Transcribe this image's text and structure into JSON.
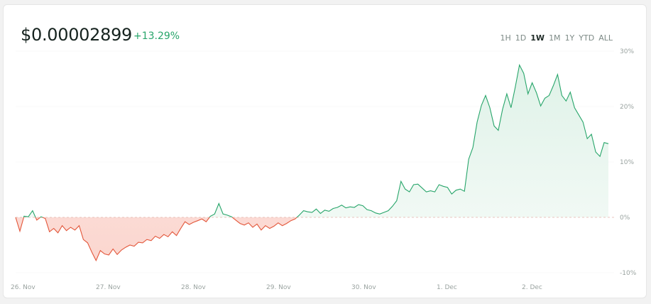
{
  "header": {
    "price": "$0.00002899",
    "change": "+13.29%"
  },
  "ranges": [
    {
      "label": "1H",
      "active": false
    },
    {
      "label": "1D",
      "active": false
    },
    {
      "label": "1W",
      "active": true
    },
    {
      "label": "1M",
      "active": false
    },
    {
      "label": "1Y",
      "active": false
    },
    {
      "label": "YTD",
      "active": false
    },
    {
      "label": "ALL",
      "active": false
    }
  ],
  "colors": {
    "up": "#27a56a",
    "down": "#e3573b",
    "up_fill": "#e9f6ef",
    "down_fill": "#fde4df",
    "baseline": "#e3b3aa"
  },
  "chart_data": {
    "type": "area",
    "x_tick_labels": [
      "26. Nov",
      "27. Nov",
      "28. Nov",
      "29. Nov",
      "30. Nov",
      "1. Dec",
      "2. Dec"
    ],
    "y_tick_labels": [
      "30%",
      "20%",
      "10%",
      "0%",
      "-10%"
    ],
    "y_ticks": [
      30,
      20,
      10,
      0,
      -10
    ],
    "ylim": [
      -10,
      30
    ],
    "baseline": 0,
    "x_range": [
      26.0,
      33.0
    ],
    "series": [
      {
        "x": [
          26.0,
          26.05,
          26.1,
          26.15,
          26.2,
          26.25,
          26.3,
          26.35,
          26.4,
          26.45,
          26.5,
          26.55,
          26.6,
          26.65,
          26.7,
          26.75,
          26.8,
          26.85,
          26.9,
          26.95,
          27.0,
          27.05,
          27.1,
          27.15,
          27.2,
          27.25,
          27.3,
          27.35,
          27.4,
          27.45,
          27.5,
          27.55,
          27.6,
          27.65,
          27.7,
          27.75,
          27.8,
          27.85,
          27.9,
          27.95,
          28.0,
          28.05,
          28.1,
          28.15,
          28.2,
          28.25,
          28.3,
          28.35,
          28.4,
          28.45,
          28.5,
          28.55,
          28.6,
          28.65,
          28.7,
          28.75,
          28.8,
          28.85,
          28.9,
          28.95,
          29.0,
          29.05,
          29.1,
          29.15,
          29.2,
          29.25,
          29.3,
          29.35,
          29.4,
          29.45,
          29.5,
          29.55,
          29.6,
          29.65,
          29.7,
          29.75,
          29.8,
          29.85,
          29.9,
          29.95,
          30.0,
          30.05,
          30.1,
          30.15,
          30.2,
          30.25,
          30.3,
          30.35,
          30.4,
          30.45,
          30.5,
          30.55,
          30.6,
          30.65,
          30.7,
          30.75,
          30.8,
          30.85,
          30.9,
          30.95,
          31.0,
          31.05,
          31.1,
          31.15,
          31.2,
          31.25,
          31.3,
          31.35,
          31.4,
          31.45,
          31.5,
          31.55,
          31.6,
          31.65,
          31.7,
          31.75,
          31.8,
          31.85,
          31.9,
          31.95,
          32.0,
          32.05,
          32.1,
          32.15,
          32.2,
          32.25,
          32.3,
          32.35,
          32.4,
          32.45,
          32.5,
          32.55,
          32.6,
          32.65,
          32.7,
          32.75,
          32.8,
          32.85,
          32.9,
          32.95,
          33.0
        ],
        "y": [
          0.0,
          -2.5,
          0.2,
          0.1,
          1.2,
          -0.5,
          0.1,
          -0.2,
          -2.6,
          -2.0,
          -2.8,
          -1.5,
          -2.4,
          -1.8,
          -2.3,
          -1.5,
          -4.0,
          -4.6,
          -6.3,
          -7.8,
          -6.0,
          -6.6,
          -6.8,
          -5.7,
          -6.7,
          -5.9,
          -5.4,
          -5.0,
          -5.2,
          -4.5,
          -4.6,
          -4.0,
          -4.2,
          -3.4,
          -3.8,
          -3.1,
          -3.5,
          -2.6,
          -3.3,
          -2.0,
          -0.8,
          -1.3,
          -0.9,
          -0.6,
          -0.3,
          -0.8,
          0.2,
          0.6,
          2.5,
          0.6,
          0.4,
          0.1,
          -0.5,
          -1.1,
          -1.4,
          -1.0,
          -1.8,
          -1.2,
          -2.3,
          -1.5,
          -2.0,
          -1.6,
          -1.0,
          -1.5,
          -1.1,
          -0.6,
          -0.3,
          0.4,
          1.2,
          1.0,
          0.9,
          1.5,
          0.7,
          1.3,
          1.1,
          1.6,
          1.8,
          2.2,
          1.7,
          1.9,
          1.8,
          2.3,
          2.1,
          1.4,
          1.2,
          0.8,
          0.6,
          0.9,
          1.2,
          2.0,
          3.0,
          6.5,
          5.1,
          4.6,
          5.9,
          6.0,
          5.3,
          4.6,
          4.8,
          4.6,
          5.9,
          5.6,
          5.4,
          4.2,
          4.9,
          5.1,
          4.7,
          10.5,
          12.6,
          17.2,
          20.2,
          22.0,
          19.8,
          16.5,
          15.7,
          19.5,
          22.3,
          19.8,
          23.5,
          27.5,
          26.0,
          22.3,
          24.3,
          22.5,
          20.1,
          21.5,
          22.0,
          23.8,
          25.8,
          22.0,
          21.0,
          22.6,
          19.8,
          18.5,
          17.2,
          14.2,
          15.0,
          11.8,
          11.0,
          13.5,
          13.3
        ]
      }
    ],
    "grid": "horizontal-dotted",
    "legend": "none"
  }
}
